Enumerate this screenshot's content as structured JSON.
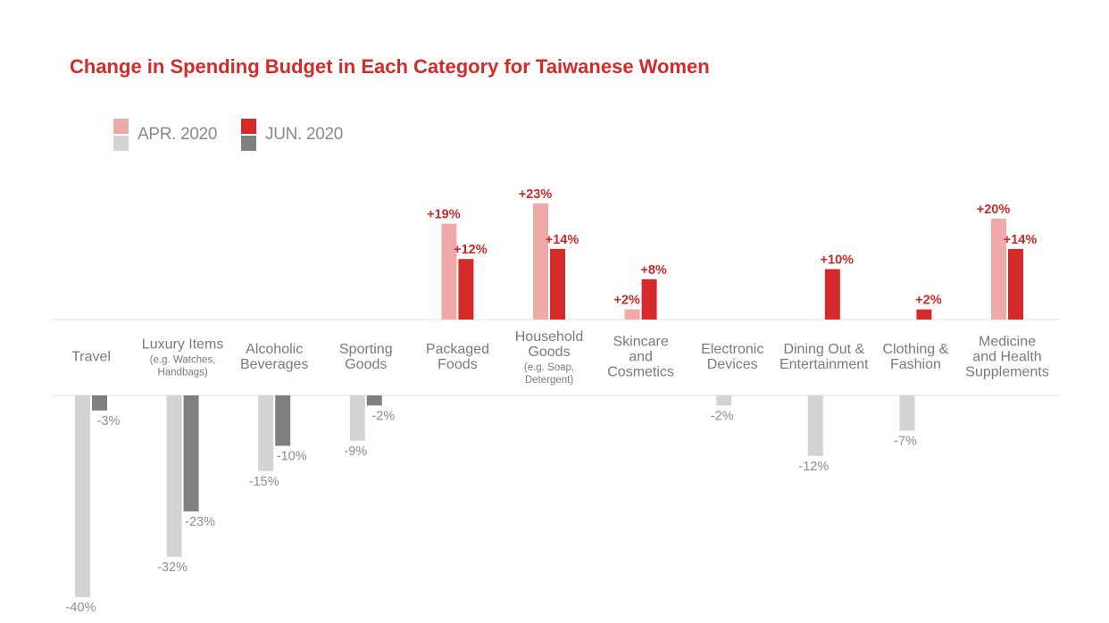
{
  "chart_data": {
    "type": "bar",
    "title": "Change in Spending Budget in Each Category for Taiwanese Women",
    "xlabel": "",
    "ylabel": "",
    "ylim": [
      -40,
      23
    ],
    "categories": [
      {
        "name": "Travel",
        "sub": ""
      },
      {
        "name": "Luxury Items",
        "sub": "(e.g. Watches, Handbags)"
      },
      {
        "name": "Alcoholic Beverages",
        "sub": ""
      },
      {
        "name": "Sporting Goods",
        "sub": ""
      },
      {
        "name": "Packaged Foods",
        "sub": ""
      },
      {
        "name": "Household Goods",
        "sub": "(e.g. Soap, Detergent)"
      },
      {
        "name": "Skincare and Cosmetics",
        "sub": ""
      },
      {
        "name": "Electronic Devices",
        "sub": ""
      },
      {
        "name": "Dining Out & Entertainment",
        "sub": ""
      },
      {
        "name": "Clothing & Fashion",
        "sub": ""
      },
      {
        "name": "Medicine and Health Supplements",
        "sub": ""
      }
    ],
    "series": [
      {
        "name": "APR. 2020",
        "values": [
          -40,
          -32,
          -15,
          -9,
          19,
          23,
          2,
          -2,
          -12,
          -7,
          20
        ],
        "labels": [
          "-40%",
          "-32%",
          "-15%",
          "-9%",
          "+19%",
          "+23%",
          "+2%",
          "-2%",
          "-12%",
          "-7%",
          "+20%"
        ]
      },
      {
        "name": "JUN. 2020",
        "values": [
          -3,
          -23,
          -10,
          -2,
          12,
          14,
          8,
          0,
          10,
          2,
          14
        ],
        "labels": [
          "-3%",
          "-23%",
          "-10%",
          "-2%",
          "+12%",
          "+14%",
          "+8%",
          "",
          "+10%",
          "+2%",
          "+14%"
        ]
      }
    ],
    "legend": [
      {
        "label": "APR. 2020",
        "positive_color": "#f0a9a9",
        "negative_color": "#d3d3d3"
      },
      {
        "label": "JUN. 2020",
        "positive_color": "#d42a2a",
        "negative_color": "#808080"
      }
    ],
    "colors": {
      "title": "#d42a2a",
      "apr_positive": "#f0a9a9",
      "apr_negative": "#d3d3d3",
      "jun_positive": "#d42a2a",
      "jun_negative": "#808080",
      "positive_label": "#cc2a2a",
      "negative_label": "#8c8c8c",
      "axis": "#e0e0e0"
    }
  }
}
